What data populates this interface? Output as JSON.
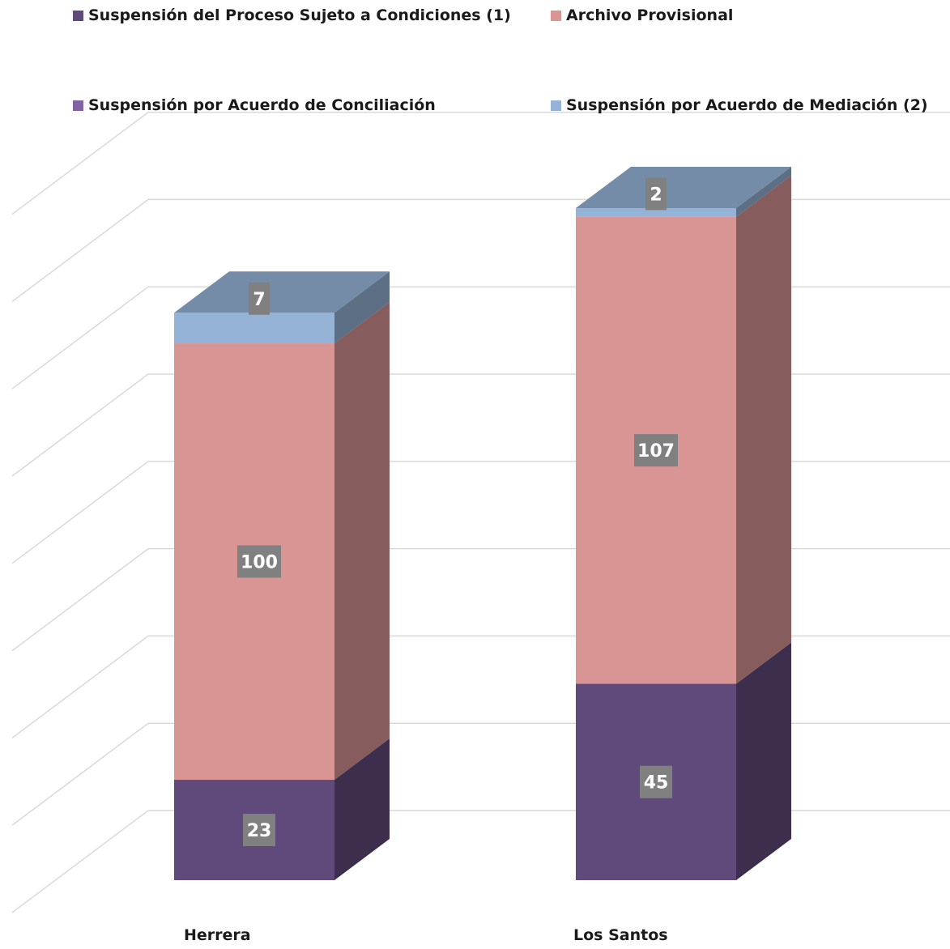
{
  "chart_data": {
    "type": "bar",
    "stacked": true,
    "three_d": true,
    "categories": [
      "Herrera",
      "Los Santos"
    ],
    "series": [
      {
        "name": "Suspensión del Proceso Sujeto a Condiciones (1)",
        "values": [
          23,
          45
        ],
        "color": "#604A7B"
      },
      {
        "name": "Archivo Provisional",
        "values": [
          100,
          107
        ],
        "color": "#D99594"
      },
      {
        "name": "Suspensión por Acuerdo de Conciliación",
        "values": [
          0,
          0
        ],
        "color": "#8064A2"
      },
      {
        "name": "Suspensión por Acuerdo de Mediación (2)",
        "values": [
          7,
          2
        ],
        "color": "#95B3D7"
      }
    ],
    "ylim": [
      0,
      160
    ],
    "grid": true,
    "legend_position": "top"
  }
}
